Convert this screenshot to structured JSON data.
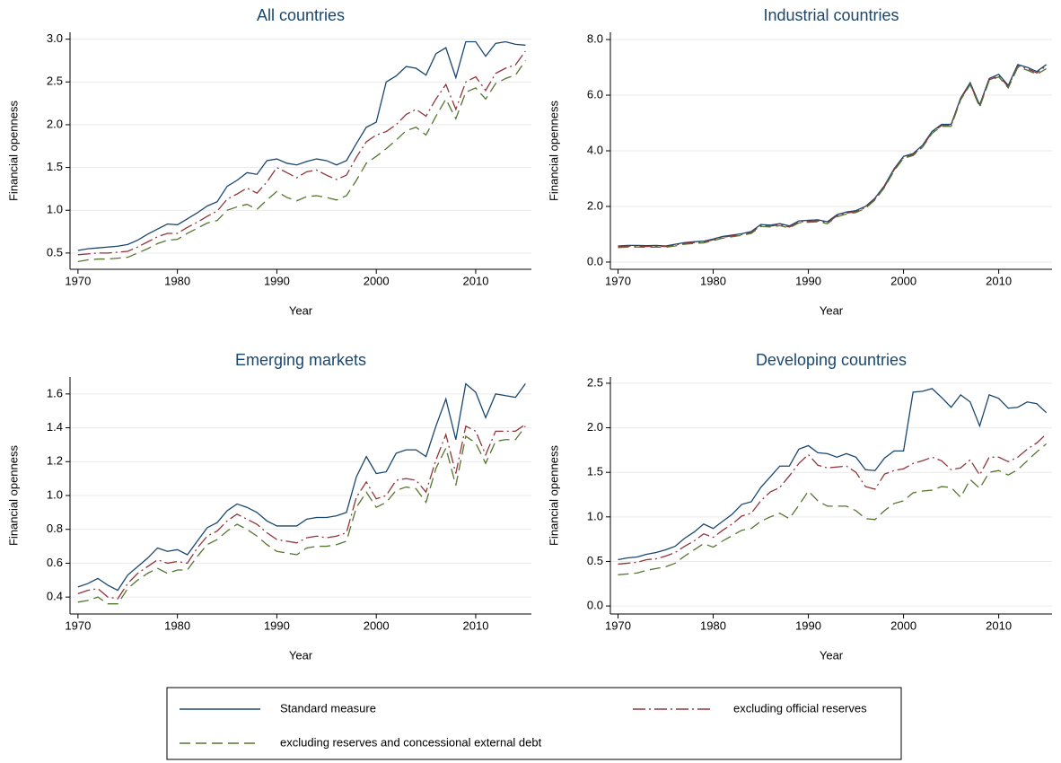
{
  "chart_data": [
    {
      "type": "line",
      "title": "All countries",
      "xlabel": "Year",
      "ylabel": "Financial openness",
      "x": [
        1970,
        1971,
        1972,
        1973,
        1974,
        1975,
        1976,
        1977,
        1978,
        1979,
        1980,
        1981,
        1982,
        1983,
        1984,
        1985,
        1986,
        1987,
        1988,
        1989,
        1990,
        1991,
        1992,
        1993,
        1994,
        1995,
        1996,
        1997,
        1998,
        1999,
        2000,
        2001,
        2002,
        2003,
        2004,
        2005,
        2006,
        2007,
        2008,
        2009,
        2010,
        2011,
        2012,
        2013,
        2014,
        2015
      ],
      "xlim": [
        1969.2,
        2015.6
      ],
      "xticks": [
        1970,
        1980,
        1990,
        2000,
        2010
      ],
      "ylim": [
        0.31,
        3.08
      ],
      "yticks": [
        {
          "value": 0.5,
          "label": "0.5"
        },
        {
          "value": 1,
          "label": "1.0"
        },
        {
          "value": 1.5,
          "label": "1.5"
        },
        {
          "value": 2,
          "label": "2.0"
        },
        {
          "value": 2.5,
          "label": "2.5"
        },
        {
          "value": 3,
          "label": "3.0"
        }
      ],
      "grid": true,
      "legend": "bottom",
      "series": [
        {
          "name": "Standard measure",
          "color": "#1a476f",
          "linestyle": "solid",
          "values": [
            0.53,
            0.55,
            0.56,
            0.57,
            0.58,
            0.6,
            0.65,
            0.72,
            0.78,
            0.84,
            0.83,
            0.9,
            0.97,
            1.05,
            1.1,
            1.28,
            1.35,
            1.44,
            1.42,
            1.58,
            1.6,
            1.55,
            1.53,
            1.57,
            1.6,
            1.58,
            1.53,
            1.58,
            1.78,
            1.97,
            2.03,
            2.5,
            2.57,
            2.68,
            2.66,
            2.58,
            2.83,
            2.9,
            2.55,
            2.97,
            2.97,
            2.8,
            2.95,
            2.97,
            2.94,
            2.93
          ]
        },
        {
          "name": "excluding official reserves",
          "color": "#90353b",
          "linestyle": "dashdot",
          "values": [
            0.48,
            0.49,
            0.5,
            0.5,
            0.51,
            0.52,
            0.57,
            0.63,
            0.69,
            0.73,
            0.73,
            0.8,
            0.86,
            0.93,
            0.99,
            1.13,
            1.19,
            1.26,
            1.2,
            1.33,
            1.5,
            1.44,
            1.38,
            1.45,
            1.47,
            1.41,
            1.36,
            1.41,
            1.62,
            1.8,
            1.88,
            1.92,
            2.0,
            2.12,
            2.18,
            2.1,
            2.3,
            2.47,
            2.18,
            2.5,
            2.56,
            2.4,
            2.6,
            2.66,
            2.7,
            2.86
          ]
        },
        {
          "name": "excluding reserves and concessional external debt",
          "color": "#55752f",
          "linestyle": "dashed",
          "values": [
            0.4,
            0.42,
            0.43,
            0.43,
            0.44,
            0.45,
            0.5,
            0.55,
            0.61,
            0.65,
            0.66,
            0.73,
            0.79,
            0.85,
            0.88,
            1.0,
            1.04,
            1.07,
            1.01,
            1.12,
            1.22,
            1.15,
            1.11,
            1.16,
            1.17,
            1.15,
            1.12,
            1.17,
            1.35,
            1.55,
            1.63,
            1.72,
            1.82,
            1.93,
            1.97,
            1.88,
            2.1,
            2.3,
            2.07,
            2.38,
            2.43,
            2.3,
            2.48,
            2.54,
            2.58,
            2.75
          ]
        }
      ]
    },
    {
      "type": "line",
      "title": "Industrial countries",
      "xlabel": "Year",
      "ylabel": "Financial openness",
      "x": [
        1970,
        1971,
        1972,
        1973,
        1974,
        1975,
        1976,
        1977,
        1978,
        1979,
        1980,
        1981,
        1982,
        1983,
        1984,
        1985,
        1986,
        1987,
        1988,
        1989,
        1990,
        1991,
        1992,
        1993,
        1994,
        1995,
        1996,
        1997,
        1998,
        1999,
        2000,
        2001,
        2002,
        2003,
        2004,
        2005,
        2006,
        2007,
        2008,
        2009,
        2010,
        2011,
        2012,
        2013,
        2014,
        2015
      ],
      "xlim": [
        1969.2,
        2015.6
      ],
      "xticks": [
        1970,
        1980,
        1990,
        2000,
        2010
      ],
      "ylim": [
        -0.26,
        8.26
      ],
      "yticks": [
        {
          "value": 0,
          "label": "0.0"
        },
        {
          "value": 2,
          "label": "2.0"
        },
        {
          "value": 4,
          "label": "4.0"
        },
        {
          "value": 6,
          "label": "6.0"
        },
        {
          "value": 8,
          "label": "8.0"
        }
      ],
      "grid": true,
      "series": [
        {
          "color": "#1a476f",
          "linestyle": "solid",
          "values": [
            0.58,
            0.6,
            0.6,
            0.59,
            0.6,
            0.58,
            0.64,
            0.7,
            0.73,
            0.75,
            0.83,
            0.92,
            0.97,
            1.02,
            1.1,
            1.35,
            1.33,
            1.38,
            1.3,
            1.48,
            1.5,
            1.52,
            1.45,
            1.7,
            1.8,
            1.85,
            2.0,
            2.3,
            2.75,
            3.35,
            3.8,
            3.9,
            4.2,
            4.7,
            4.95,
            4.95,
            5.9,
            6.45,
            5.65,
            6.6,
            6.75,
            6.35,
            7.1,
            7.0,
            6.85,
            7.1
          ]
        },
        {
          "color": "#90353b",
          "linestyle": "dashdot",
          "values": [
            0.55,
            0.57,
            0.57,
            0.56,
            0.57,
            0.56,
            0.61,
            0.67,
            0.7,
            0.72,
            0.8,
            0.89,
            0.94,
            0.99,
            1.06,
            1.31,
            1.29,
            1.34,
            1.26,
            1.44,
            1.46,
            1.48,
            1.41,
            1.66,
            1.76,
            1.81,
            1.96,
            2.26,
            2.71,
            3.31,
            3.76,
            3.86,
            4.16,
            4.66,
            4.91,
            4.91,
            5.86,
            6.41,
            5.6,
            6.55,
            6.7,
            6.3,
            7.05,
            6.95,
            6.8,
            7.05
          ]
        },
        {
          "color": "#55752f",
          "linestyle": "dashed",
          "values": [
            0.52,
            0.54,
            0.54,
            0.53,
            0.54,
            0.53,
            0.58,
            0.64,
            0.67,
            0.69,
            0.77,
            0.86,
            0.91,
            0.96,
            1.03,
            1.28,
            1.26,
            1.31,
            1.23,
            1.41,
            1.43,
            1.45,
            1.38,
            1.63,
            1.73,
            1.78,
            1.93,
            2.23,
            2.68,
            3.28,
            3.73,
            3.83,
            4.13,
            4.63,
            4.88,
            4.88,
            5.83,
            6.38,
            5.57,
            6.52,
            6.66,
            6.26,
            7.0,
            6.9,
            6.75,
            6.95
          ]
        }
      ]
    },
    {
      "type": "line",
      "title": "Emerging markets",
      "xlabel": "Year",
      "ylabel": "Financial openness",
      "x": [
        1970,
        1971,
        1972,
        1973,
        1974,
        1975,
        1976,
        1977,
        1978,
        1979,
        1980,
        1981,
        1982,
        1983,
        1984,
        1985,
        1986,
        1987,
        1988,
        1989,
        1990,
        1991,
        1992,
        1993,
        1994,
        1995,
        1996,
        1997,
        1998,
        1999,
        2000,
        2001,
        2002,
        2003,
        2004,
        2005,
        2006,
        2007,
        2008,
        2009,
        2010,
        2011,
        2012,
        2013,
        2014,
        2015
      ],
      "xlim": [
        1969.2,
        2015.6
      ],
      "xticks": [
        1970,
        1980,
        1990,
        2000,
        2010
      ],
      "ylim": [
        0.3,
        1.7
      ],
      "yticks": [
        0.4,
        0.6,
        0.8,
        {
          "value": 1,
          "label": "1.0"
        },
        1.2,
        1.4,
        1.6
      ],
      "grid": true,
      "series": [
        {
          "color": "#1a476f",
          "linestyle": "solid",
          "values": [
            0.46,
            0.48,
            0.51,
            0.47,
            0.44,
            0.53,
            0.58,
            0.63,
            0.69,
            0.67,
            0.68,
            0.65,
            0.73,
            0.81,
            0.84,
            0.91,
            0.95,
            0.93,
            0.9,
            0.85,
            0.82,
            0.82,
            0.82,
            0.86,
            0.87,
            0.87,
            0.88,
            0.9,
            1.11,
            1.23,
            1.13,
            1.14,
            1.25,
            1.27,
            1.27,
            1.23,
            1.41,
            1.57,
            1.33,
            1.66,
            1.61,
            1.46,
            1.6,
            1.59,
            1.58,
            1.66
          ]
        },
        {
          "color": "#90353b",
          "linestyle": "dashdot",
          "values": [
            0.42,
            0.44,
            0.45,
            0.4,
            0.39,
            0.48,
            0.54,
            0.58,
            0.62,
            0.6,
            0.61,
            0.6,
            0.69,
            0.76,
            0.79,
            0.85,
            0.89,
            0.86,
            0.83,
            0.78,
            0.74,
            0.73,
            0.72,
            0.75,
            0.76,
            0.75,
            0.76,
            0.78,
            0.99,
            1.08,
            0.98,
            1.0,
            1.09,
            1.1,
            1.09,
            1.02,
            1.21,
            1.36,
            1.13,
            1.41,
            1.38,
            1.24,
            1.38,
            1.38,
            1.38,
            1.42
          ]
        },
        {
          "color": "#55752f",
          "linestyle": "dashed",
          "values": [
            0.37,
            0.38,
            0.4,
            0.36,
            0.36,
            0.45,
            0.5,
            0.54,
            0.57,
            0.54,
            0.56,
            0.56,
            0.64,
            0.71,
            0.74,
            0.79,
            0.83,
            0.8,
            0.76,
            0.71,
            0.67,
            0.66,
            0.65,
            0.69,
            0.7,
            0.7,
            0.71,
            0.73,
            0.93,
            1.02,
            0.93,
            0.96,
            1.03,
            1.05,
            1.04,
            0.96,
            1.16,
            1.28,
            1.06,
            1.35,
            1.31,
            1.19,
            1.32,
            1.33,
            1.33,
            1.41
          ]
        }
      ]
    },
    {
      "type": "line",
      "title": "Developing countries",
      "xlabel": "Year",
      "ylabel": "Financial openness",
      "x": [
        1970,
        1971,
        1972,
        1973,
        1974,
        1975,
        1976,
        1977,
        1978,
        1979,
        1980,
        1981,
        1982,
        1983,
        1984,
        1985,
        1986,
        1987,
        1988,
        1989,
        1990,
        1991,
        1992,
        1993,
        1994,
        1995,
        1996,
        1997,
        1998,
        1999,
        2000,
        2001,
        2002,
        2003,
        2004,
        2005,
        2006,
        2007,
        2008,
        2009,
        2010,
        2011,
        2012,
        2013,
        2014,
        2015
      ],
      "xlim": [
        1969.2,
        2015.6
      ],
      "xticks": [
        1970,
        1980,
        1990,
        2000,
        2010
      ],
      "ylim": [
        -0.09,
        2.57
      ],
      "yticks": [
        {
          "value": 0,
          "label": "0.0"
        },
        0.5,
        {
          "value": 1,
          "label": "1.0"
        },
        1.5,
        {
          "value": 2,
          "label": "2.0"
        },
        2.5
      ],
      "grid": true,
      "series": [
        {
          "color": "#1a476f",
          "linestyle": "solid",
          "values": [
            0.52,
            0.54,
            0.55,
            0.58,
            0.6,
            0.63,
            0.67,
            0.76,
            0.83,
            0.92,
            0.87,
            0.95,
            1.03,
            1.14,
            1.17,
            1.33,
            1.45,
            1.57,
            1.57,
            1.76,
            1.8,
            1.72,
            1.71,
            1.67,
            1.71,
            1.67,
            1.53,
            1.52,
            1.66,
            1.74,
            1.74,
            2.4,
            2.41,
            2.44,
            2.34,
            2.23,
            2.37,
            2.29,
            2.02,
            2.37,
            2.33,
            2.22,
            2.23,
            2.29,
            2.27,
            2.17
          ]
        },
        {
          "color": "#90353b",
          "linestyle": "dashdot",
          "values": [
            0.47,
            0.48,
            0.49,
            0.52,
            0.53,
            0.56,
            0.6,
            0.67,
            0.73,
            0.81,
            0.77,
            0.85,
            0.92,
            1.01,
            1.04,
            1.18,
            1.28,
            1.33,
            1.46,
            1.6,
            1.7,
            1.58,
            1.55,
            1.56,
            1.57,
            1.5,
            1.34,
            1.31,
            1.48,
            1.52,
            1.54,
            1.6,
            1.63,
            1.67,
            1.63,
            1.53,
            1.55,
            1.64,
            1.47,
            1.67,
            1.67,
            1.62,
            1.67,
            1.76,
            1.83,
            1.93
          ]
        },
        {
          "color": "#55752f",
          "linestyle": "dashed",
          "values": [
            0.35,
            0.36,
            0.37,
            0.4,
            0.42,
            0.44,
            0.48,
            0.56,
            0.63,
            0.7,
            0.66,
            0.73,
            0.79,
            0.85,
            0.87,
            0.95,
            1.0,
            1.04,
            0.98,
            1.13,
            1.29,
            1.18,
            1.12,
            1.12,
            1.12,
            1.07,
            0.98,
            0.97,
            1.07,
            1.15,
            1.18,
            1.27,
            1.29,
            1.3,
            1.34,
            1.33,
            1.22,
            1.42,
            1.32,
            1.5,
            1.52,
            1.47,
            1.53,
            1.63,
            1.73,
            1.82
          ]
        }
      ]
    }
  ]
}
